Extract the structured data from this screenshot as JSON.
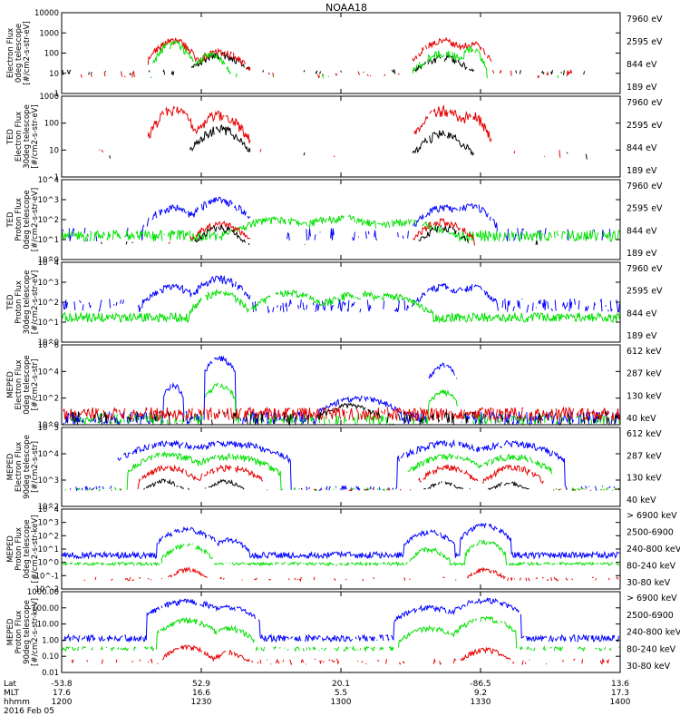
{
  "title": "NOAA18",
  "date": "2016 Feb 05",
  "colors": {
    "black": "#000000",
    "red": "#e60000",
    "green": "#00e000",
    "blue": "#0000ff",
    "magenta": "#ff00ff"
  },
  "x_axis": {
    "row_labels": [
      "Lat",
      "MLT",
      "hhmm"
    ],
    "ticks": [
      {
        "time": 1200,
        "lat": "-53.8",
        "mlt": "17.6",
        "hhmm": "1200"
      },
      {
        "time": 1230,
        "lat": "52.9",
        "mlt": "16.6",
        "hhmm": "1230"
      },
      {
        "time": 1300,
        "lat": "20.1",
        "mlt": "5.5",
        "hhmm": "1300"
      },
      {
        "time": 1330,
        "lat": "-86.5",
        "mlt": "9.2",
        "hhmm": "1330"
      },
      {
        "time": 1400,
        "lat": "13.6",
        "mlt": "17.3",
        "hhmm": "1400"
      }
    ]
  },
  "chart_data": [
    {
      "type": "line",
      "panel": 1,
      "ylabel": [
        "Electron Flux",
        "0deg telescope",
        "[#/cm2-s-str-eV]"
      ],
      "yscale": "log",
      "ylim": [
        1,
        10000
      ],
      "ytick_labels": [
        "1",
        "10",
        "100",
        "1000",
        "10000"
      ],
      "legend": [
        "7960 eV",
        "2595 eV",
        "844 eV",
        "189 eV"
      ],
      "legend_colors": [
        "#000000",
        "#e60000",
        "#00e000",
        "#0000ff"
      ],
      "series": [
        {
          "name": "7960 eV",
          "color": "#000000",
          "base": [
            8,
            15
          ],
          "bursts": [
            {
              "t": 1234,
              "w": 3,
              "peak": 80
            },
            {
              "t": 1322,
              "w": 3,
              "peak": 60
            }
          ],
          "sparse": 0.25
        },
        {
          "name": "2595 eV",
          "color": "#e60000",
          "base": [
            6,
            14
          ],
          "bursts": [
            {
              "t": 1224,
              "w": 2.5,
              "peak": 400
            },
            {
              "t": 1234,
              "w": 3,
              "peak": 120
            },
            {
              "t": 1322,
              "w": 3,
              "peak": 400
            },
            {
              "t": 1328,
              "w": 2,
              "peak": 300
            }
          ],
          "sparse": 0.3
        },
        {
          "name": "844 eV",
          "color": "#00e000",
          "base": [
            5,
            10
          ],
          "bursts": [
            {
              "t": 1224,
              "w": 2,
              "peak": 300
            },
            {
              "t": 1232,
              "w": 2,
              "peak": 80
            },
            {
              "t": 1322,
              "w": 3,
              "peak": 100
            },
            {
              "t": 1328,
              "w": 1.5,
              "peak": 150
            }
          ],
          "sparse": 0.12
        },
        {
          "name": "189 eV",
          "color": "#0000ff",
          "base": [
            20,
            40
          ],
          "bursts": [],
          "sparse": 0.004
        }
      ]
    },
    {
      "type": "line",
      "panel": 2,
      "ylabel": [
        "TED",
        "Electron Flux",
        "30deg telescope",
        "[#/cm2-s-str-eV]"
      ],
      "yscale": "log",
      "ylim": [
        1,
        1000
      ],
      "ytick_labels": [
        "1",
        "10",
        "100",
        "1000"
      ],
      "legend": [
        "7960 eV",
        "2595 eV",
        "844 eV",
        "189 eV"
      ],
      "legend_colors": [
        "#000000",
        "#e60000",
        "#00e000",
        "#0000ff"
      ],
      "series": [
        {
          "name": "7960 eV",
          "color": "#000000",
          "base": [
            4,
            10
          ],
          "bursts": [
            {
              "t": 1234,
              "w": 3,
              "peak": 60
            },
            {
              "t": 1322,
              "w": 3,
              "peak": 40
            }
          ],
          "sparse": 0.12
        },
        {
          "name": "2595 eV",
          "color": "#e60000",
          "base": [
            5,
            12
          ],
          "bursts": [
            {
              "t": 1224,
              "w": 2.5,
              "peak": 300
            },
            {
              "t": 1234,
              "w": 3,
              "peak": 200
            },
            {
              "t": 1322,
              "w": 3,
              "peak": 300
            },
            {
              "t": 1328,
              "w": 2,
              "peak": 200
            }
          ],
          "sparse": 0.15
        },
        {
          "name": "844 eV",
          "color": "#00e000",
          "base": [
            5,
            8
          ],
          "bursts": [],
          "sparse": 0.0
        },
        {
          "name": "189 eV",
          "color": "#0000ff",
          "base": [
            5,
            8
          ],
          "bursts": [],
          "sparse": 0.0
        }
      ]
    },
    {
      "type": "line",
      "panel": 3,
      "ylabel": [
        "TED",
        "Proton Flux",
        "0deg telescope",
        "[#/cm2-s-str-eV]"
      ],
      "yscale": "log",
      "ylim": [
        1,
        10000
      ],
      "ytick_labels": [
        "10^0",
        "10^1",
        "10^2",
        "10^3",
        "10^4"
      ],
      "legend": [
        "7960 eV",
        "2595 eV",
        "844 eV",
        "189 eV"
      ],
      "legend_colors": [
        "#000000",
        "#e60000",
        "#00e000",
        "#0000ff"
      ],
      "series": [
        {
          "name": "189 eV",
          "color": "#0000ff",
          "base": [
            8,
            40
          ],
          "bursts": [
            {
              "t": 1224,
              "w": 3,
              "peak": 400
            },
            {
              "t": 1234,
              "w": 3,
              "peak": 1000
            },
            {
              "t": 1322,
              "w": 3,
              "peak": 400
            },
            {
              "t": 1328,
              "w": 2.5,
              "peak": 500
            }
          ],
          "sparse": 0.35
        },
        {
          "name": "844 eV",
          "color": "#00e000",
          "base": [
            8,
            30
          ],
          "bursts": [
            {
              "t": 1246,
              "w": 5,
              "peak": 100
            },
            {
              "t": 1300,
              "w": 6,
              "peak": 120
            },
            {
              "t": 1314,
              "w": 5,
              "peak": 80
            }
          ],
          "sparse": 0.9
        },
        {
          "name": "2595 eV",
          "color": "#e60000",
          "base": [
            5,
            10
          ],
          "bursts": [
            {
              "t": 1234,
              "w": 3,
              "peak": 60
            },
            {
              "t": 1322,
              "w": 3,
              "peak": 80
            }
          ],
          "sparse": 0.05
        },
        {
          "name": "7960 eV",
          "color": "#000000",
          "base": [
            5,
            10
          ],
          "bursts": [
            {
              "t": 1234,
              "w": 2.5,
              "peak": 40
            },
            {
              "t": 1322,
              "w": 2.5,
              "peak": 40
            }
          ],
          "sparse": 0.05
        }
      ]
    },
    {
      "type": "line",
      "panel": 4,
      "ylabel": [
        "TED",
        "Proton Flux",
        "30deg telescope",
        "[#/cm2-s-str-eV]"
      ],
      "yscale": "log",
      "ylim": [
        1,
        10000
      ],
      "ytick_labels": [
        "10^0",
        "10^1",
        "10^2",
        "10^3",
        "10^4"
      ],
      "legend": [
        "7960 eV",
        "2595 eV",
        "844 eV",
        "189 eV"
      ],
      "legend_colors": [
        "#000000",
        "#e60000",
        "#00e000",
        "#0000ff"
      ],
      "series": [
        {
          "name": "189 eV",
          "color": "#0000ff",
          "base": [
            30,
            150
          ],
          "bursts": [
            {
              "t": 1224,
              "w": 3,
              "peak": 600
            },
            {
              "t": 1234,
              "w": 3,
              "peak": 1500
            },
            {
              "t": 1322,
              "w": 3,
              "peak": 600
            },
            {
              "t": 1328,
              "w": 2.5,
              "peak": 600
            }
          ],
          "sparse": 0.6
        },
        {
          "name": "844 eV",
          "color": "#00e000",
          "base": [
            10,
            30
          ],
          "bursts": [
            {
              "t": 1249,
              "w": 4,
              "peak": 300
            },
            {
              "t": 1304,
              "w": 5,
              "peak": 250
            },
            {
              "t": 1311,
              "w": 4,
              "peak": 200
            },
            {
              "t": 1234,
              "w": 3,
              "peak": 300
            }
          ],
          "sparse": 1.0
        }
      ]
    },
    {
      "type": "line",
      "panel": 5,
      "ylabel": [
        "MEPED",
        "Electron Flux",
        "0deg telescope",
        "[#/cm2-s-str]"
      ],
      "yscale": "log",
      "ylim": [
        1,
        1000000
      ],
      "ytick_labels": [
        "10^0",
        "10^2",
        "10^4",
        "10^6"
      ],
      "legend": [
        "612 keV",
        "287 keV",
        "130 keV",
        "40 keV"
      ],
      "legend_colors": [
        "#000000",
        "#e60000",
        "#00e000",
        "#0000ff"
      ],
      "series": [
        {
          "name": "40 keV",
          "color": "#0000ff",
          "base": [
            1,
            10
          ],
          "bursts": [
            {
              "t": 1234,
              "w": 1.5,
              "peak": 100000
            },
            {
              "t": 1322,
              "w": 1.5,
              "peak": 30000
            },
            {
              "t": 1224,
              "w": 1,
              "peak": 1000
            },
            {
              "t": 1304,
              "w": 4,
              "peak": 100
            }
          ],
          "sparse": 0.8
        },
        {
          "name": "130 keV",
          "color": "#00e000",
          "base": [
            1,
            8
          ],
          "bursts": [
            {
              "t": 1234,
              "w": 1.5,
              "peak": 1000
            },
            {
              "t": 1322,
              "w": 1.5,
              "peak": 300
            }
          ],
          "sparse": 0.6
        },
        {
          "name": "287 keV",
          "color": "#e60000",
          "base": [
            2,
            20
          ],
          "bursts": [],
          "sparse": 0.9
        },
        {
          "name": "612 keV",
          "color": "#000000",
          "base": [
            1,
            10
          ],
          "bursts": [
            {
              "t": 1302,
              "w": 3,
              "peak": 30
            }
          ],
          "sparse": 0.5
        }
      ]
    },
    {
      "type": "line",
      "panel": 6,
      "ylabel": [
        "MEPED",
        "Electron Flux",
        "90deg telescope",
        "[#/cm2-s-str]"
      ],
      "yscale": "log",
      "ylim": [
        10,
        1000000
      ],
      "ytick_labels": [
        "10^2",
        "10^3",
        "10^4",
        "10^5"
      ],
      "legend": [
        "612 keV",
        "287 keV",
        "130 keV",
        "40 keV"
      ],
      "legend_colors": [
        "#000000",
        "#e60000",
        "#00e000",
        "#0000ff"
      ],
      "series": [
        {
          "name": "40 keV",
          "color": "#0000ff",
          "base": [
            100,
            200
          ],
          "bursts": [
            {
              "t": 1223,
              "w": 5,
              "peak": 100000
            },
            {
              "t": 1236,
              "w": 6,
              "peak": 100000
            },
            {
              "t": 1323,
              "w": 5,
              "peak": 100000
            },
            {
              "t": 1337,
              "w": 5,
              "peak": 100000
            }
          ],
          "sparse": 0.5
        },
        {
          "name": "130 keV",
          "color": "#00e000",
          "base": [
            100,
            150
          ],
          "bursts": [
            {
              "t": 1223,
              "w": 4,
              "peak": 20000
            },
            {
              "t": 1236,
              "w": 5,
              "peak": 15000
            },
            {
              "t": 1323,
              "w": 4,
              "peak": 15000
            },
            {
              "t": 1337,
              "w": 4,
              "peak": 15000
            }
          ],
          "sparse": 0.4
        },
        {
          "name": "287 keV",
          "color": "#e60000",
          "base": [
            100,
            130
          ],
          "bursts": [
            {
              "t": 1223,
              "w": 3,
              "peak": 3000
            },
            {
              "t": 1236,
              "w": 3.5,
              "peak": 3000
            },
            {
              "t": 1323,
              "w": 3,
              "peak": 3000
            },
            {
              "t": 1337,
              "w": 3,
              "peak": 3000
            }
          ],
          "sparse": 0.3
        },
        {
          "name": "612 keV",
          "color": "#000000",
          "base": [
            100,
            150
          ],
          "bursts": [
            {
              "t": 1222,
              "w": 2,
              "peak": 400
            },
            {
              "t": 1235,
              "w": 2,
              "peak": 400
            },
            {
              "t": 1322,
              "w": 2,
              "peak": 300
            },
            {
              "t": 1336,
              "w": 2,
              "peak": 300
            }
          ],
          "sparse": 0.15
        }
      ]
    },
    {
      "type": "line",
      "panel": 7,
      "ylabel": [
        "MEPED",
        "Proton Flux",
        "0deg telescope",
        "[#/cm2-s-str-keV]"
      ],
      "yscale": "log",
      "ylim": [
        0.01,
        10000
      ],
      "ytick_labels": [
        "10^-2",
        "10^-1",
        "10^0",
        "10^1",
        "10^2",
        "10^3",
        "10^4"
      ],
      "legend": [
        "> 6900 keV",
        "2500-6900",
        "240-800 keV",
        "80-240 keV",
        "30-80 keV"
      ],
      "legend_colors": [
        "#ff00ff",
        "#000000",
        "#e60000",
        "#00e000",
        "#0000ff"
      ],
      "series": [
        {
          "name": "30-80 keV",
          "color": "#0000ff",
          "base": [
            2,
            6
          ],
          "bursts": [
            {
              "t": 1227,
              "w": 3,
              "peak": 300
            },
            {
              "t": 1236,
              "w": 2,
              "peak": 50
            },
            {
              "t": 1319,
              "w": 2.5,
              "peak": 200
            },
            {
              "t": 1331,
              "w": 2.5,
              "peak": 600
            }
          ],
          "sparse": 1.0
        },
        {
          "name": "80-240 keV",
          "color": "#00e000",
          "base": [
            0.6,
            1
          ],
          "bursts": [
            {
              "t": 1227,
              "w": 2.5,
              "peak": 20
            },
            {
              "t": 1319,
              "w": 2,
              "peak": 10
            },
            {
              "t": 1331,
              "w": 2,
              "peak": 40
            }
          ],
          "sparse": 0.9
        },
        {
          "name": "240-800 keV",
          "color": "#e60000",
          "base": [
            0.04,
            0.08
          ],
          "bursts": [
            {
              "t": 1227,
              "w": 2,
              "peak": 0.3
            },
            {
              "t": 1331,
              "w": 2,
              "peak": 0.3
            }
          ],
          "sparse": 0.4
        }
      ]
    },
    {
      "type": "line",
      "panel": 8,
      "ylabel": [
        "MEPED",
        "Proton Flux",
        "90deg telescope",
        "[#/cm2-s-str-keV]"
      ],
      "yscale": "log",
      "ylim": [
        0.01,
        10000
      ],
      "ytick_labels": [
        "0.01",
        "0.10",
        "1.00",
        "10.00",
        "100.00",
        "1000.00"
      ],
      "legend": [
        "> 6900 keV",
        "2500-6900",
        "240-800 keV",
        "80-240 keV",
        "30-80 keV"
      ],
      "legend_colors": [
        "#ff00ff",
        "#000000",
        "#e60000",
        "#00e000",
        "#0000ff"
      ],
      "series": [
        {
          "name": "30-80 keV",
          "color": "#0000ff",
          "base": [
            2,
            6
          ],
          "bursts": [
            {
              "t": 1227,
              "w": 4,
              "peak": 2000
            },
            {
              "t": 1236,
              "w": 3,
              "peak": 700
            },
            {
              "t": 1319,
              "w": 3.5,
              "peak": 700
            },
            {
              "t": 1331,
              "w": 3.5,
              "peak": 2500
            }
          ],
          "sparse": 0.9
        },
        {
          "name": "80-240 keV",
          "color": "#00e000",
          "base": [
            0.4,
            0.8
          ],
          "bursts": [
            {
              "t": 1227,
              "w": 3,
              "peak": 80
            },
            {
              "t": 1236,
              "w": 2.5,
              "peak": 20
            },
            {
              "t": 1319,
              "w": 3,
              "peak": 20
            },
            {
              "t": 1331,
              "w": 3,
              "peak": 100
            }
          ],
          "sparse": 0.7
        },
        {
          "name": "240-800 keV",
          "color": "#e60000",
          "base": [
            0.04,
            0.1
          ],
          "bursts": [
            {
              "t": 1227,
              "w": 2.5,
              "peak": 0.8
            },
            {
              "t": 1236,
              "w": 2,
              "peak": 0.3
            },
            {
              "t": 1331,
              "w": 2.5,
              "peak": 0.5
            }
          ],
          "sparse": 0.4
        }
      ]
    }
  ]
}
